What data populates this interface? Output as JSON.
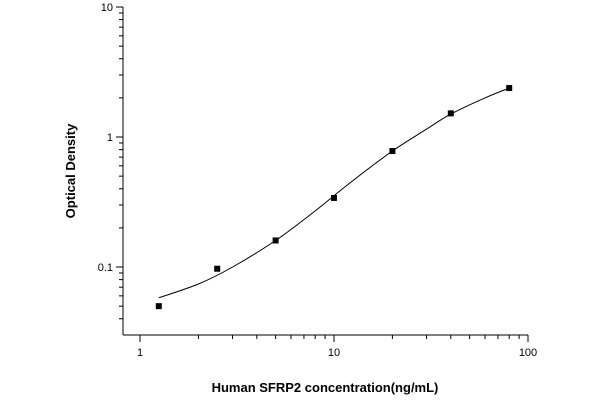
{
  "chart_data": {
    "type": "scatter",
    "title": "",
    "xlabel": "Human SFRP2 concentration(ng/mL)",
    "ylabel": "Optical Density",
    "x_scale": "log",
    "y_scale": "log",
    "xlim": [
      1,
      100
    ],
    "ylim": [
      0.03,
      10
    ],
    "x_ticks": [
      {
        "value": 1,
        "label": "1"
      },
      {
        "value": 10,
        "label": "10"
      },
      {
        "value": 100,
        "label": "100"
      }
    ],
    "y_ticks": [
      {
        "value": 0.1,
        "label": "0.1"
      },
      {
        "value": 1,
        "label": "1"
      },
      {
        "value": 10,
        "label": "10"
      }
    ],
    "grid": false,
    "legend": "none",
    "series": [
      {
        "marker": "square",
        "x": [
          1.25,
          2.5,
          5,
          10,
          20,
          40,
          80
        ],
        "y": [
          0.05,
          0.097,
          0.16,
          0.34,
          0.78,
          1.52,
          2.38
        ]
      }
    ],
    "fit_curve": {
      "x": [
        1.25,
        2.0,
        3.0,
        5.0,
        8.0,
        12.0,
        20.0,
        30.0,
        40.0,
        60.0,
        80.0
      ],
      "y": [
        0.058,
        0.074,
        0.1,
        0.16,
        0.27,
        0.44,
        0.78,
        1.15,
        1.5,
        2.0,
        2.38
      ]
    },
    "colors": {
      "marks": "#000000",
      "axes": "#000000",
      "background": "#ffffff"
    }
  }
}
